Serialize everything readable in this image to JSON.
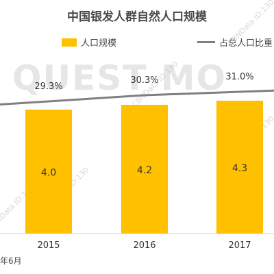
{
  "chart_data": {
    "type": "bar",
    "title": "中国银发人群自然人口规模",
    "categories": [
      "2015",
      "2016",
      "2017"
    ],
    "series": [
      {
        "name": "人口规模",
        "kind": "bar",
        "values": [
          4.0,
          4.2,
          4.3
        ],
        "value_labels": [
          "4.0",
          "4.2",
          "4.3"
        ],
        "color": "#FFC000"
      },
      {
        "name": "占总人口比重",
        "kind": "line",
        "values": [
          29.3,
          30.3,
          31.0
        ],
        "value_labels": [
          "29.3%",
          "30.3%",
          "31.0%"
        ],
        "color": "#7f7f7f"
      }
    ],
    "legend_position": "top",
    "grid": false
  },
  "watermark": {
    "brand": "QUEST MO",
    "ids": [
      "CBNData ID:130",
      "CBNData ID:130",
      "CBNData ID:130",
      "CBNData ID:13",
      "CBNData ID:130"
    ]
  },
  "footnote": "年6月"
}
